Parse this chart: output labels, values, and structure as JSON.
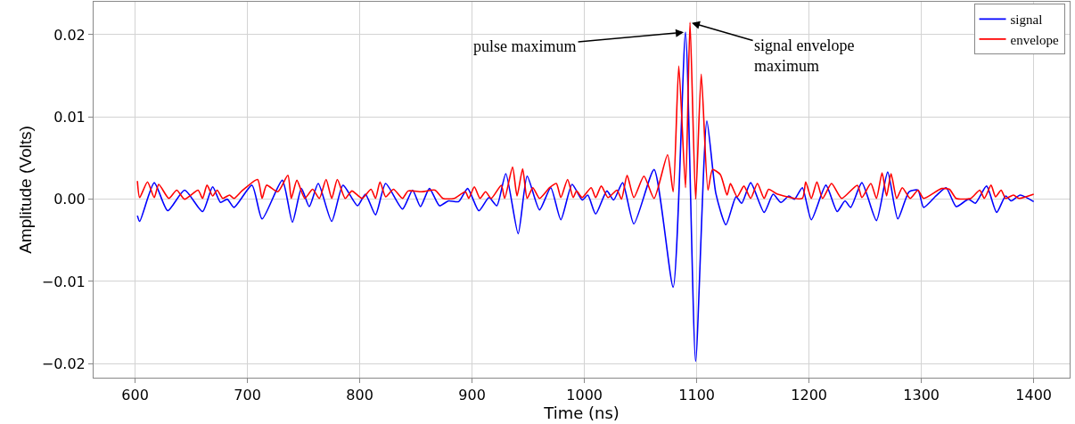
{
  "chart_data": {
    "type": "line",
    "xlabel": "Time (ns)",
    "ylabel": "Amplitude (Volts)",
    "xlim": [
      563,
      1432
    ],
    "ylim": [
      -0.0217,
      0.024
    ],
    "xticks": [
      600,
      700,
      800,
      900,
      1000,
      1100,
      1200,
      1300,
      1400
    ],
    "yticks": [
      {
        "value": -0.02,
        "label": "−0.02"
      },
      {
        "value": -0.01,
        "label": "−0.01"
      },
      {
        "value": 0,
        "label": "0.00"
      },
      {
        "value": 0.01,
        "label": "0.01"
      },
      {
        "value": 0.02,
        "label": "0.02"
      }
    ],
    "grid": true,
    "legend": "top right",
    "marker": "none",
    "line_style": "solid",
    "annotations": [
      {
        "text": "pulse maximum",
        "x": 1090,
        "y": 0.0203
      },
      {
        "text": "signal envelope\nmaximum",
        "x": 1094,
        "y": 0.0215
      }
    ],
    "series": [
      {
        "name": "signal",
        "color": "#0000ff",
        "x": [
          602,
          604,
          617,
          629,
          644,
          660,
          669,
          676,
          682,
          688,
          704,
          713,
          731,
          740,
          748,
          755,
          763,
          775,
          785,
          798,
          805,
          814,
          823,
          838,
          847,
          854,
          862,
          871,
          879,
          888,
          896,
          906,
          915,
          922,
          930,
          941,
          949,
          960,
          970,
          979,
          989,
          998,
          1003,
          1010,
          1020,
          1026,
          1034,
          1044,
          1062,
          1079,
          1090,
          1099,
          1109,
          1117,
          1126,
          1135,
          1140,
          1148,
          1160,
          1168,
          1175,
          1182,
          1187,
          1194,
          1202,
          1215,
          1225,
          1232,
          1237,
          1247,
          1260,
          1270,
          1279,
          1289,
          1297,
          1302,
          1313,
          1322,
          1331,
          1342,
          1348,
          1358,
          1367,
          1375,
          1380,
          1388,
          1400
        ],
        "values": [
          -0.002,
          -0.0027,
          0.002,
          -0.0014,
          0.0011,
          -0.0015,
          0.0015,
          -0.0004,
          0.0,
          -0.001,
          0.0017,
          -0.0024,
          0.0023,
          -0.0028,
          0.0013,
          -0.0009,
          0.0019,
          -0.0027,
          0.0017,
          -0.0008,
          0.0006,
          -0.0019,
          0.0019,
          -0.0012,
          0.0011,
          -0.0009,
          0.0013,
          -0.0008,
          -0.0002,
          -0.0003,
          0.0013,
          -0.0014,
          0.0002,
          -0.0008,
          0.0031,
          -0.0042,
          0.0028,
          -0.0013,
          0.0014,
          -0.0025,
          0.0018,
          -0.0001,
          0.0005,
          -0.0018,
          0.001,
          -0.0001,
          0.002,
          -0.003,
          0.0036,
          -0.0107,
          0.0203,
          -0.0197,
          0.0095,
          0.0007,
          -0.0031,
          0.0003,
          -0.0005,
          0.002,
          -0.0016,
          0.0006,
          -0.0004,
          0.0004,
          0.0,
          0.0014,
          -0.0025,
          0.0017,
          -0.0015,
          -0.0002,
          -0.001,
          0.002,
          -0.0026,
          0.0033,
          -0.0024,
          0.0009,
          0.0011,
          -0.001,
          0.0004,
          0.0014,
          -0.0009,
          0.0,
          -0.0005,
          0.0016,
          -0.0016,
          0.0004,
          -0.0002,
          0.0005,
          -0.0003
        ]
      },
      {
        "name": "envelope",
        "color": "#ff0000",
        "x": [
          602,
          604,
          611,
          617,
          621,
          630,
          637,
          644,
          656,
          660,
          664,
          669,
          673,
          678,
          684,
          688,
          695,
          709,
          713,
          717,
          727,
          736,
          739,
          744,
          751,
          758,
          764,
          770,
          775,
          780,
          787,
          793,
          802,
          810,
          814,
          818,
          823,
          830,
          838,
          843,
          855,
          867,
          874,
          884,
          894,
          897,
          902,
          907,
          912,
          917,
          926,
          929,
          936,
          940,
          945,
          949,
          954,
          960,
          969,
          975,
          979,
          985,
          990,
          993,
          998,
          1006,
          1010,
          1015,
          1021,
          1029,
          1033,
          1038,
          1044,
          1053,
          1062,
          1074,
          1079,
          1084,
          1090,
          1094,
          1099,
          1104,
          1110,
          1114,
          1121,
          1127,
          1130,
          1136,
          1142,
          1148,
          1154,
          1160,
          1164,
          1172,
          1194,
          1197,
          1202,
          1207,
          1212,
          1220,
          1229,
          1243,
          1247,
          1255,
          1260,
          1265,
          1269,
          1273,
          1278,
          1283,
          1290,
          1297,
          1302,
          1318,
          1325,
          1331,
          1344,
          1352,
          1356,
          1362,
          1366,
          1371,
          1375,
          1382,
          1387,
          1400
        ],
        "values": [
          0.0022,
          0.0002,
          0.0021,
          0.0002,
          0.0018,
          0.0001,
          0.0011,
          0.0,
          0.0011,
          0.0001,
          0.0017,
          0.0004,
          0.0011,
          0.0001,
          0.0005,
          0.0001,
          0.001,
          0.0024,
          0.0001,
          0.0017,
          0.0009,
          0.0029,
          0.0001,
          0.0023,
          0.0001,
          0.0012,
          0.0001,
          0.0024,
          0.0001,
          0.0024,
          0.0001,
          0.001,
          0.0001,
          0.0012,
          0.0001,
          0.0021,
          0.0003,
          0.0012,
          0.0001,
          0.001,
          0.0009,
          0.0011,
          0.0001,
          0.0001,
          0.0009,
          0.0001,
          0.0015,
          0.0001,
          0.0009,
          0.0001,
          0.0017,
          0.0001,
          0.0039,
          0.0004,
          0.0037,
          0.0001,
          0.0014,
          0.0001,
          0.0014,
          0.0019,
          0.0002,
          0.0024,
          0.0002,
          0.001,
          0.0002,
          0.0014,
          0.0002,
          0.0016,
          0.0002,
          0.0011,
          0.0,
          0.0029,
          0.0002,
          0.0028,
          0.0001,
          0.0054,
          0.0009,
          0.0162,
          0.0014,
          0.0215,
          0.0,
          0.0152,
          0.0011,
          0.0036,
          0.003,
          0.0005,
          0.0019,
          0.0003,
          0.0016,
          0.0001,
          0.0019,
          0.0001,
          0.0012,
          0.0006,
          0.0001,
          0.0021,
          0.0001,
          0.0021,
          0.0001,
          0.0019,
          0.0001,
          0.0017,
          0.0002,
          0.0019,
          0.0001,
          0.0032,
          0.0004,
          0.0031,
          0.0001,
          0.0014,
          0.0001,
          0.0011,
          0.0001,
          0.0013,
          0.0012,
          0.0001,
          0.0001,
          0.0011,
          0.0001,
          0.0017,
          0.0003,
          0.0011,
          0.0001,
          0.0005,
          0.0001,
          0.0006
        ]
      }
    ]
  }
}
